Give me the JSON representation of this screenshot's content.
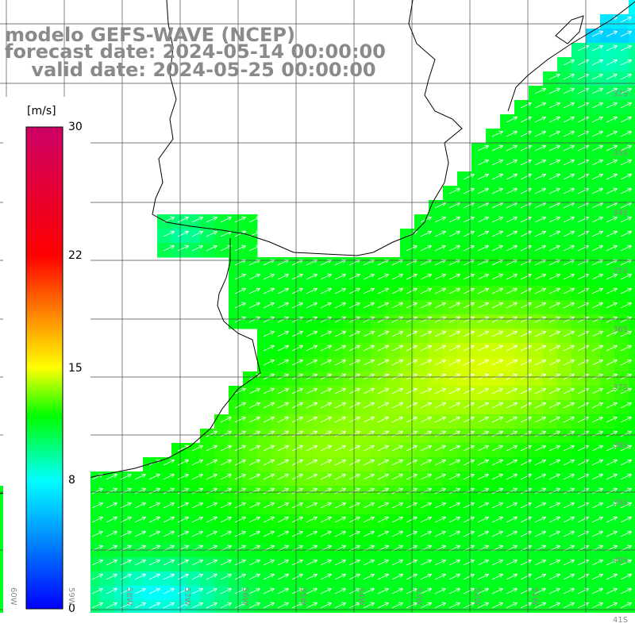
{
  "title": {
    "line1": "modelo GEFS-WAVE (NCEP)",
    "line2": "forecast date: 2024-05-14 00:00:00",
    "line3": "    valid date: 2024-05-25 00:00:00"
  },
  "colorbar": {
    "unit": "[m/s]",
    "ticks": [
      "30",
      "22",
      "15",
      "8",
      "0"
    ],
    "tick_values": [
      30,
      22,
      15,
      8,
      0
    ],
    "colors": [
      "#0000ff",
      "#00ffff",
      "#00ff00",
      "#ffff00",
      "#ff0000",
      "#cc0066"
    ]
  },
  "lat_labels": [
    "32S",
    "33S",
    "34S",
    "35S",
    "36S",
    "37S",
    "38S",
    "39S",
    "40S",
    "41S"
  ],
  "lon_labels": [
    "60W",
    "59W",
    "58W",
    "57W",
    "56W",
    "55W",
    "54W",
    "53W",
    "52W",
    "51W"
  ],
  "colors": {
    "land": "#ffffff",
    "grid": "#4a4a4a",
    "coast": "#000000",
    "arrows": "#ffffff",
    "title": "#8a8a8a"
  },
  "map": {
    "field": "wind speed (m/s)",
    "arrow_direction": "southwest to northeast"
  }
}
